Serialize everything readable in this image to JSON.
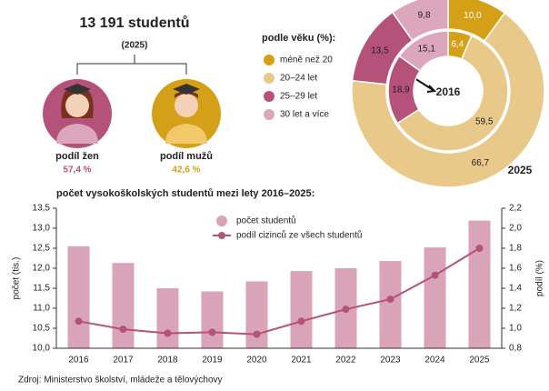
{
  "header": {
    "total": "13 191 studentů",
    "year": "(2025)",
    "women_label": "podíl žen",
    "women_value": "57,4 %",
    "men_label": "podíl mužů",
    "men_value": "42,6 %"
  },
  "chart_data": [
    {
      "type": "donut",
      "title": "podle věku (%):",
      "categories": [
        "méně než 20",
        "20–24 let",
        "25–29 let",
        "30 let a více"
      ],
      "colors": [
        "#d4a017",
        "#e8c98a",
        "#b5527a",
        "#dca7bd"
      ],
      "series": [
        {
          "name": "2016",
          "values": [
            6.4,
            59.5,
            18.9,
            15.1
          ],
          "value_labels": [
            "6,4",
            "59,5",
            "18,9",
            "15,1"
          ]
        },
        {
          "name": "2025",
          "values": [
            10,
            66.7,
            13.5,
            9.8
          ],
          "value_labels": [
            "10,0",
            "66,7",
            "13,5",
            "9,8"
          ]
        }
      ]
    },
    {
      "type": "bar-line",
      "title": "počet vysokoškolských studentů mezi lety 2016–2025:",
      "categories": [
        "2016",
        "2017",
        "2018",
        "2019",
        "2020",
        "2021",
        "2022",
        "2023",
        "2024",
        "2025"
      ],
      "series": [
        {
          "name": "počet studentů",
          "type": "bar",
          "color": "#d9a3b8",
          "values": [
            12.55,
            12.13,
            11.5,
            11.42,
            11.67,
            11.93,
            12.0,
            12.18,
            12.52,
            13.19
          ]
        },
        {
          "name": "podíl cizinců ze všech studentů",
          "type": "line",
          "axis": "y2",
          "color": "#b5527a",
          "values": [
            1.07,
            0.99,
            0.95,
            0.96,
            0.94,
            1.07,
            1.19,
            1.29,
            1.53,
            1.8
          ]
        }
      ],
      "ylabel": "počet (tis.)",
      "y2label": "podíl (%)",
      "ylim": [
        10,
        13.5
      ],
      "yticks": [
        {
          "value": 10,
          "label": "10,0"
        },
        {
          "value": 10.5,
          "label": "10,5"
        },
        {
          "value": 11,
          "label": "11,0"
        },
        {
          "value": 11.5,
          "label": "11,5"
        },
        {
          "value": 12,
          "label": "12,0"
        },
        {
          "value": 12.5,
          "label": "12,5"
        },
        {
          "value": 13,
          "label": "13,0"
        },
        {
          "value": 13.5,
          "label": "13,5"
        }
      ],
      "y2lim": [
        0.8,
        2.2
      ],
      "y2ticks": [
        {
          "value": 0.8,
          "label": "0,8"
        },
        {
          "value": 1,
          "label": "1,0"
        },
        {
          "value": 1.2,
          "label": "1,2"
        },
        {
          "value": 1.4,
          "label": "1,4"
        },
        {
          "value": 1.6,
          "label": "1,6"
        },
        {
          "value": 1.8,
          "label": "1,8"
        },
        {
          "value": 2,
          "label": "2,0"
        },
        {
          "value": 2.2,
          "label": "2,2"
        }
      ]
    }
  ],
  "source": "Zdroj: Ministerstvo školství, mládeže a tělovýchovy"
}
